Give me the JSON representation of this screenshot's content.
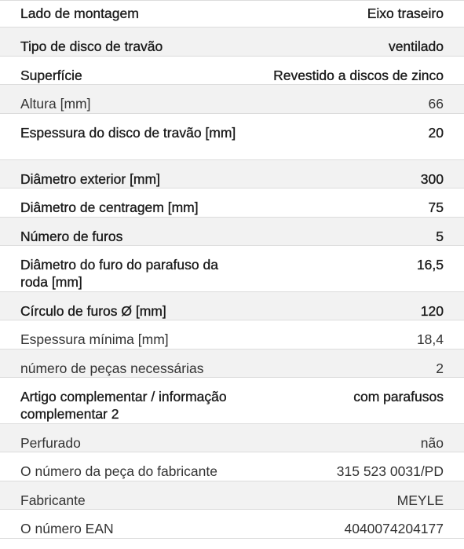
{
  "rows": [
    {
      "label": "Lado de montagem",
      "value": "Eixo traseiro"
    },
    {
      "label": "Tipo de disco de travão",
      "value": "ventilado"
    },
    {
      "label": "Superfície",
      "value": "Revestido a discos de zinco"
    },
    {
      "label": "Altura [mm]",
      "value": "66"
    },
    {
      "label": "Espessura do disco de travão [mm]",
      "value": "20"
    },
    {
      "label": "Diâmetro exterior [mm]",
      "value": "300"
    },
    {
      "label": "Diâmetro de centragem [mm]",
      "value": "75"
    },
    {
      "label": "Número de furos",
      "value": "5"
    },
    {
      "label": "Diâmetro do furo do parafuso da roda [mm]",
      "value": "16,5"
    },
    {
      "label": "Círculo de furos Ø [mm]",
      "value": "120"
    },
    {
      "label": "Espessura mínima [mm]",
      "value": "18,4"
    },
    {
      "label": "número de peças necessárias",
      "value": "2"
    },
    {
      "label": "Artigo complementar / informação complementar 2",
      "value": "com parafusos"
    },
    {
      "label": "Perfurado",
      "value": "não"
    },
    {
      "label": "O número da peça do fabricante",
      "value": "315 523 0031/PD"
    },
    {
      "label": "Fabricante",
      "value": "MEYLE"
    },
    {
      "label": "O número EAN",
      "value": "4040074204177"
    }
  ]
}
